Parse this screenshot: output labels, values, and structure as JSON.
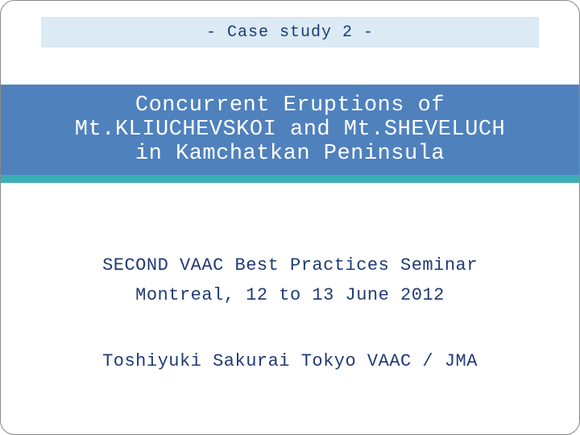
{
  "slide": {
    "background_color": "#ffffff",
    "border_color": "#888888"
  },
  "subtitle": {
    "text": "- Case study 2 -",
    "bg_color": "#dbeaf4",
    "text_color": "#1f3b73",
    "fontsize": 20
  },
  "title": {
    "line1": "Concurrent Eruptions of",
    "line2": "Mt.KLIUCHEVSKOI and Mt.SHEVELUCH",
    "line3": "in Kamchatkan Peninsula",
    "bg_color": "#4f81bd",
    "text_color": "#ffffff",
    "fontsize": 27
  },
  "accent": {
    "color": "#3aafb5"
  },
  "body": {
    "seminar_line1": "SECOND VAAC Best Practices Seminar",
    "seminar_line2": "Montreal, 12 to 13 June 2012",
    "author_line": "Toshiyuki Sakurai  Tokyo VAAC / JMA",
    "text_color": "#1f3b73",
    "fontsize": 22
  }
}
